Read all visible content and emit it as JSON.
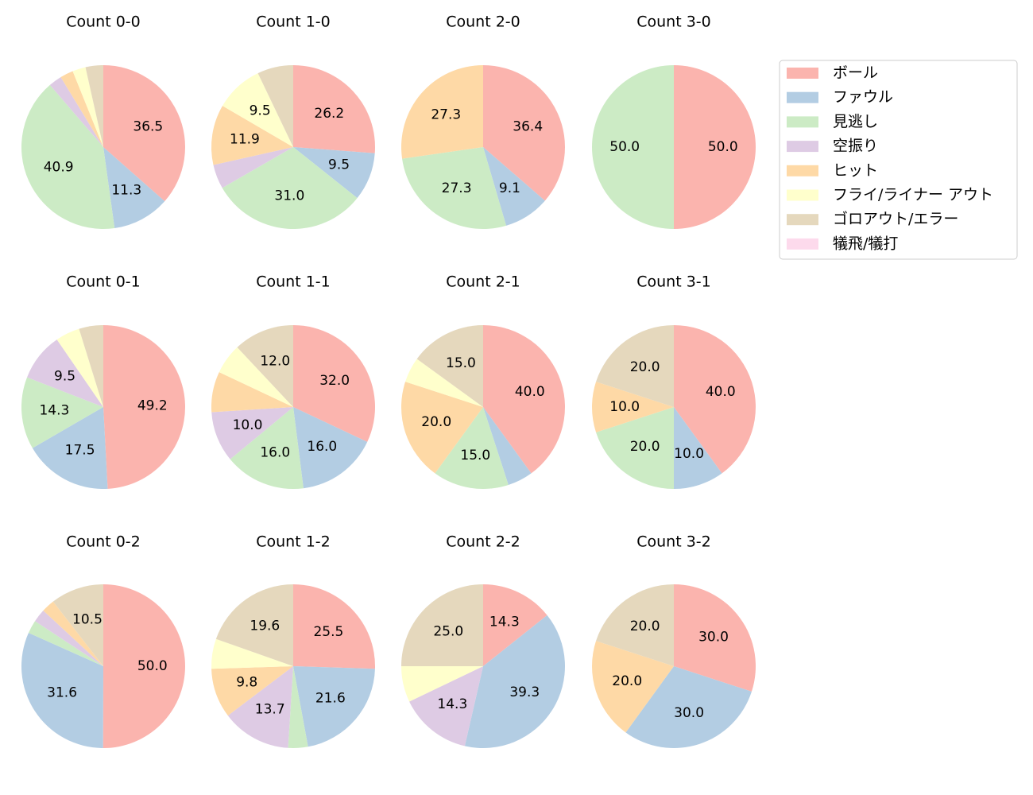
{
  "legend": {
    "labels": [
      "ボール",
      "ファウル",
      "見逃し",
      "空振り",
      "ヒット",
      "フライ/ライナー アウト",
      "ゴロアウト/エラー",
      "犠飛/犠打"
    ],
    "colors": [
      "#fbb4ae",
      "#b3cde3",
      "#ccebc5",
      "#decbe4",
      "#fed9a6",
      "#ffffcc",
      "#e5d8bd",
      "#fddaec"
    ]
  },
  "chart_data": [
    {
      "type": "pie",
      "title": "Count 0-0",
      "values": [
        36.5,
        11.3,
        40.9,
        2.6,
        2.6,
        2.6,
        3.5,
        0
      ],
      "value_labels": [
        "36.5",
        "11.3",
        "40.9",
        null,
        null,
        null,
        null,
        null
      ]
    },
    {
      "type": "pie",
      "title": "Count 1-0",
      "values": [
        26.2,
        9.5,
        31.0,
        4.8,
        11.9,
        9.5,
        7.1,
        0
      ],
      "value_labels": [
        "26.2",
        "9.5",
        "31.0",
        null,
        "11.9",
        "9.5",
        null,
        null
      ]
    },
    {
      "type": "pie",
      "title": "Count 2-0",
      "values": [
        36.4,
        9.1,
        27.3,
        0,
        27.3,
        0,
        0,
        0
      ],
      "value_labels": [
        "36.4",
        "9.1",
        "27.3",
        null,
        "27.3",
        null,
        null,
        null
      ]
    },
    {
      "type": "pie",
      "title": "Count 3-0",
      "values": [
        50,
        0,
        50,
        0,
        0,
        0,
        0,
        0
      ],
      "value_labels": [
        "50.0",
        null,
        "50.0",
        null,
        null,
        null,
        null,
        null
      ]
    },
    {
      "type": "pie",
      "title": "Count 0-1",
      "values": [
        49.2,
        17.5,
        14.3,
        9.5,
        0,
        4.8,
        4.8,
        0
      ],
      "value_labels": [
        "49.2",
        "17.5",
        "14.3",
        "9.5",
        null,
        null,
        null,
        null
      ]
    },
    {
      "type": "pie",
      "title": "Count 1-1",
      "values": [
        32,
        16,
        16,
        10,
        8,
        6,
        12,
        0
      ],
      "value_labels": [
        "32.0",
        "16.0",
        "16.0",
        "10.0",
        null,
        null,
        "12.0",
        null
      ]
    },
    {
      "type": "pie",
      "title": "Count 2-1",
      "values": [
        40,
        5,
        15,
        0,
        20,
        5,
        15,
        0
      ],
      "value_labels": [
        "40.0",
        null,
        "15.0",
        null,
        "20.0",
        null,
        "15.0",
        null
      ]
    },
    {
      "type": "pie",
      "title": "Count 3-1",
      "values": [
        40,
        10,
        20,
        0,
        10,
        0,
        20,
        0
      ],
      "value_labels": [
        "40.0",
        "10.0",
        "20.0",
        null,
        "10.0",
        null,
        "20.0",
        null
      ]
    },
    {
      "type": "pie",
      "title": "Count 0-2",
      "values": [
        50,
        31.6,
        2.6,
        2.6,
        2.6,
        0,
        10.5,
        0
      ],
      "value_labels": [
        "50.0",
        "31.6",
        null,
        null,
        null,
        null,
        "10.5",
        null
      ]
    },
    {
      "type": "pie",
      "title": "Count 1-2",
      "values": [
        25.5,
        21.6,
        3.9,
        13.7,
        9.8,
        5.9,
        19.6,
        0
      ],
      "value_labels": [
        "25.5",
        "21.6",
        null,
        "13.7",
        "9.8",
        null,
        "19.6",
        null
      ]
    },
    {
      "type": "pie",
      "title": "Count 2-2",
      "values": [
        14.3,
        39.3,
        0,
        14.3,
        0,
        7.1,
        25.0,
        0
      ],
      "value_labels": [
        "14.3",
        "39.3",
        null,
        "14.3",
        null,
        null,
        "25.0",
        null
      ]
    },
    {
      "type": "pie",
      "title": "Count 3-2",
      "values": [
        30,
        30,
        0,
        0,
        20,
        0,
        20,
        0
      ],
      "value_labels": [
        "30.0",
        "30.0",
        null,
        null,
        "20.0",
        null,
        "20.0",
        null
      ]
    }
  ]
}
